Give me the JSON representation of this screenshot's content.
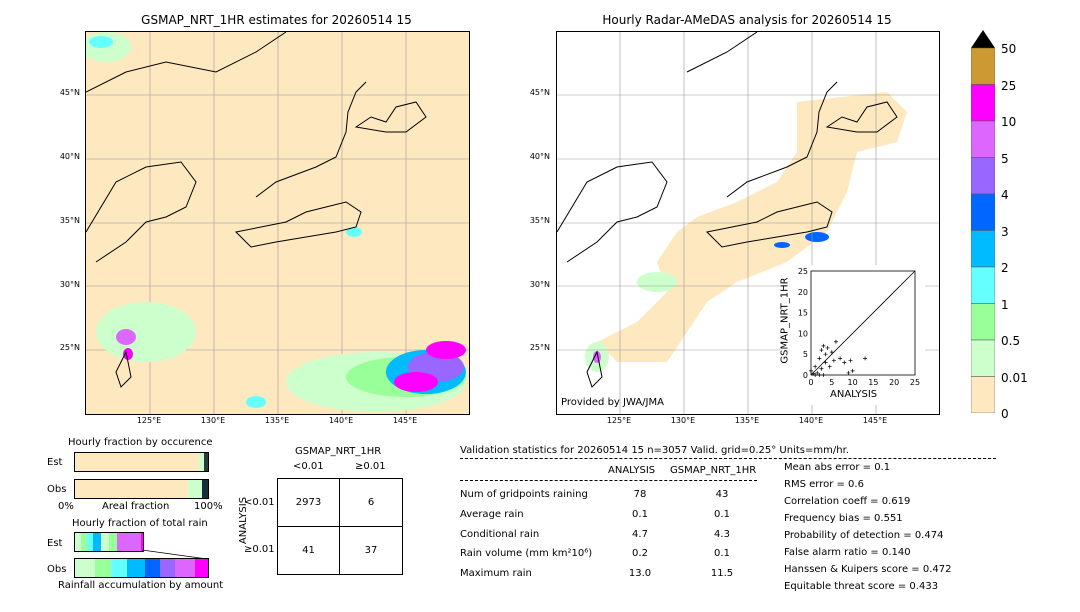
{
  "left_map": {
    "title": "GSMAP_NRT_1HR estimates for 20260514 15",
    "lat_labels": [
      "45°N",
      "40°N",
      "35°N",
      "30°N",
      "25°N"
    ],
    "lon_labels": [
      "125°E",
      "130°E",
      "135°E",
      "140°E",
      "145°E"
    ]
  },
  "right_map": {
    "title": "Hourly Radar-AMeDAS analysis for 20260514 15",
    "lat_labels": [
      "45°N",
      "40°N",
      "35°N",
      "30°N",
      "25°N"
    ],
    "lon_labels": [
      "125°E",
      "130°E",
      "135°E",
      "140°E",
      "145°E"
    ],
    "provided_by": "Provided by JWA/JMA"
  },
  "scatter": {
    "xlabel": "ANALYSIS",
    "ylabel": "GSMAP_NRT_1HR",
    "ticks": [
      "0",
      "5",
      "10",
      "15",
      "20",
      "25"
    ]
  },
  "colorbar": {
    "labels": [
      "50",
      "25",
      "10",
      "5",
      "4",
      "3",
      "2",
      "1",
      "0.5",
      "0.01",
      "0"
    ],
    "colors": [
      "#000000",
      "#cc9933",
      "#ff00ff",
      "#dd66ff",
      "#9966ff",
      "#0066ff",
      "#00bbff",
      "#66ffff",
      "#99ff99",
      "#ccffcc",
      "#fde8c0"
    ]
  },
  "occurrence": {
    "title": "Hourly fraction by occurence",
    "est_label": "Est",
    "obs_label": "Obs",
    "axis_left": "0%",
    "axis_mid": "Areal fraction",
    "axis_right": "100%"
  },
  "total_rain": {
    "title": "Hourly fraction of total rain",
    "est_label": "Est",
    "obs_label": "Obs",
    "axis_label": "Rainfall accumulation by amount"
  },
  "contingency": {
    "title": "GSMAP_NRT_1HR",
    "col1": "<0.01",
    "col2": "≥0.01",
    "row_axis": "ANALYSIS",
    "row1": "<0.01",
    "row2": "≥0.01",
    "cells": [
      "2973",
      "6",
      "41",
      "37"
    ]
  },
  "validation": {
    "header": "Validation statistics for 20260514 15  n=3057 Valid. grid=0.25° Units=mm/hr.",
    "col_analysis": "ANALYSIS",
    "col_gsmap": "GSMAP_NRT_1HR",
    "rows": [
      {
        "label": "Num of gridpoints raining",
        "a": "78",
        "g": "43"
      },
      {
        "label": "Average rain",
        "a": "0.1",
        "g": "0.1"
      },
      {
        "label": "Conditional rain",
        "a": "4.7",
        "g": "4.3"
      },
      {
        "label": "Rain volume (mm km²10⁶)",
        "a": "0.2",
        "g": "0.1"
      },
      {
        "label": "Maximum rain",
        "a": "13.0",
        "g": "11.5"
      }
    ],
    "stats": [
      "Mean abs error =    0.1",
      "RMS error =    0.6",
      "Correlation coeff =  0.619",
      "Frequency bias =  0.551",
      "Probability of detection =  0.474",
      "False alarm ratio =  0.140",
      "Hanssen & Kuipers score =  0.472",
      "Equitable threat score =  0.433"
    ]
  },
  "chart_data": {
    "type": "scatter",
    "title": "",
    "xlabel": "ANALYSIS",
    "ylabel": "GSMAP_NRT_1HR",
    "xlim": [
      0,
      25
    ],
    "ylim": [
      0,
      25
    ],
    "points": [
      {
        "x": 0.5,
        "y": 0.3
      },
      {
        "x": 1.0,
        "y": 2.0
      },
      {
        "x": 1.5,
        "y": 0.5
      },
      {
        "x": 2.0,
        "y": 4.0
      },
      {
        "x": 2.5,
        "y": 1.5
      },
      {
        "x": 3.0,
        "y": 7.0
      },
      {
        "x": 3.5,
        "y": 3.0
      },
      {
        "x": 4.0,
        "y": 6.5
      },
      {
        "x": 4.5,
        "y": 2.0
      },
      {
        "x": 5.0,
        "y": 5.5
      },
      {
        "x": 5.5,
        "y": 3.5
      },
      {
        "x": 6.0,
        "y": 8.0
      },
      {
        "x": 1.0,
        "y": 0.0
      },
      {
        "x": 2.0,
        "y": 0.0
      },
      {
        "x": 3.0,
        "y": 0.0
      },
      {
        "x": 0.0,
        "y": 1.0
      },
      {
        "x": 7.0,
        "y": 4.0
      },
      {
        "x": 8.0,
        "y": 3.0
      },
      {
        "x": 9.0,
        "y": 0.5
      },
      {
        "x": 10.0,
        "y": 1.0
      },
      {
        "x": 13.0,
        "y": 4.0
      },
      {
        "x": 9.5,
        "y": 3.5
      },
      {
        "x": 3.5,
        "y": 5.0
      },
      {
        "x": 2.5,
        "y": 6.0
      }
    ]
  }
}
